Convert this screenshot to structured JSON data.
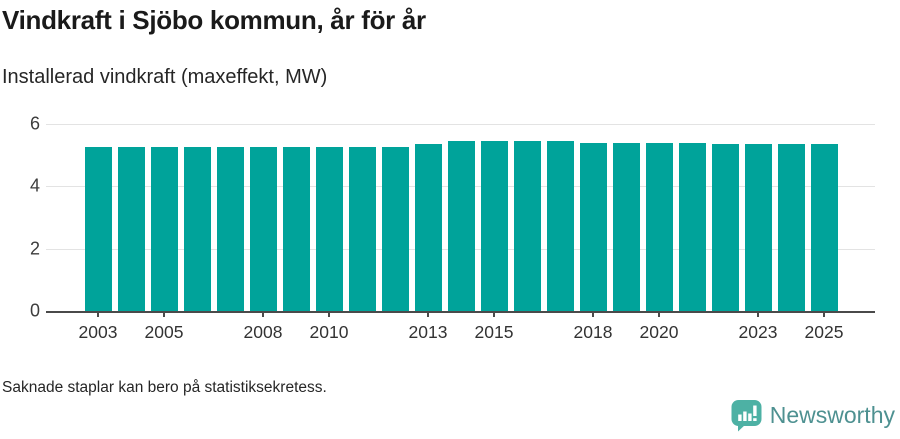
{
  "title": "Vindkraft i Sjöbo kommun, år för år",
  "subtitle": "Installerad vindkraft (maxeffekt, MW)",
  "footnote": "Saknade staplar kan bero på statistiksekretess.",
  "logo": {
    "text": "Newsworthy",
    "icon": "bar-chart-speech-bubble"
  },
  "colors": {
    "bar": "#00a39a",
    "grid": "#e3e3e3",
    "axis": "#4a4a4a",
    "title_text": "#1a1a1a",
    "body_text": "#262626",
    "tick_text": "#333333",
    "logo_icon": "#4db1a4",
    "logo_text": "#4e9191"
  },
  "chart_data": {
    "type": "bar",
    "title": "Vindkraft i Sjöbo kommun, år för år",
    "subtitle": "Installerad vindkraft (maxeffekt, MW)",
    "xlabel": "",
    "ylabel": "Installerad vindkraft (maxeffekt, MW)",
    "x": [
      2003,
      2004,
      2005,
      2006,
      2007,
      2008,
      2009,
      2010,
      2011,
      2012,
      2013,
      2014,
      2015,
      2016,
      2017,
      2018,
      2019,
      2020,
      2021,
      2022,
      2023,
      2024,
      2025
    ],
    "values": [
      5.25,
      5.25,
      5.25,
      5.25,
      5.25,
      5.25,
      5.25,
      5.25,
      5.25,
      5.25,
      5.35,
      5.45,
      5.45,
      5.45,
      5.45,
      5.4,
      5.4,
      5.4,
      5.4,
      5.35,
      5.35,
      5.35,
      5.35
    ],
    "ylim": [
      0,
      6
    ],
    "yticks": [
      0,
      2,
      4,
      6
    ],
    "xticks": [
      2003,
      2005,
      2008,
      2010,
      2013,
      2015,
      2018,
      2020,
      2023,
      2025
    ],
    "grid": true,
    "legend_position": "none"
  }
}
